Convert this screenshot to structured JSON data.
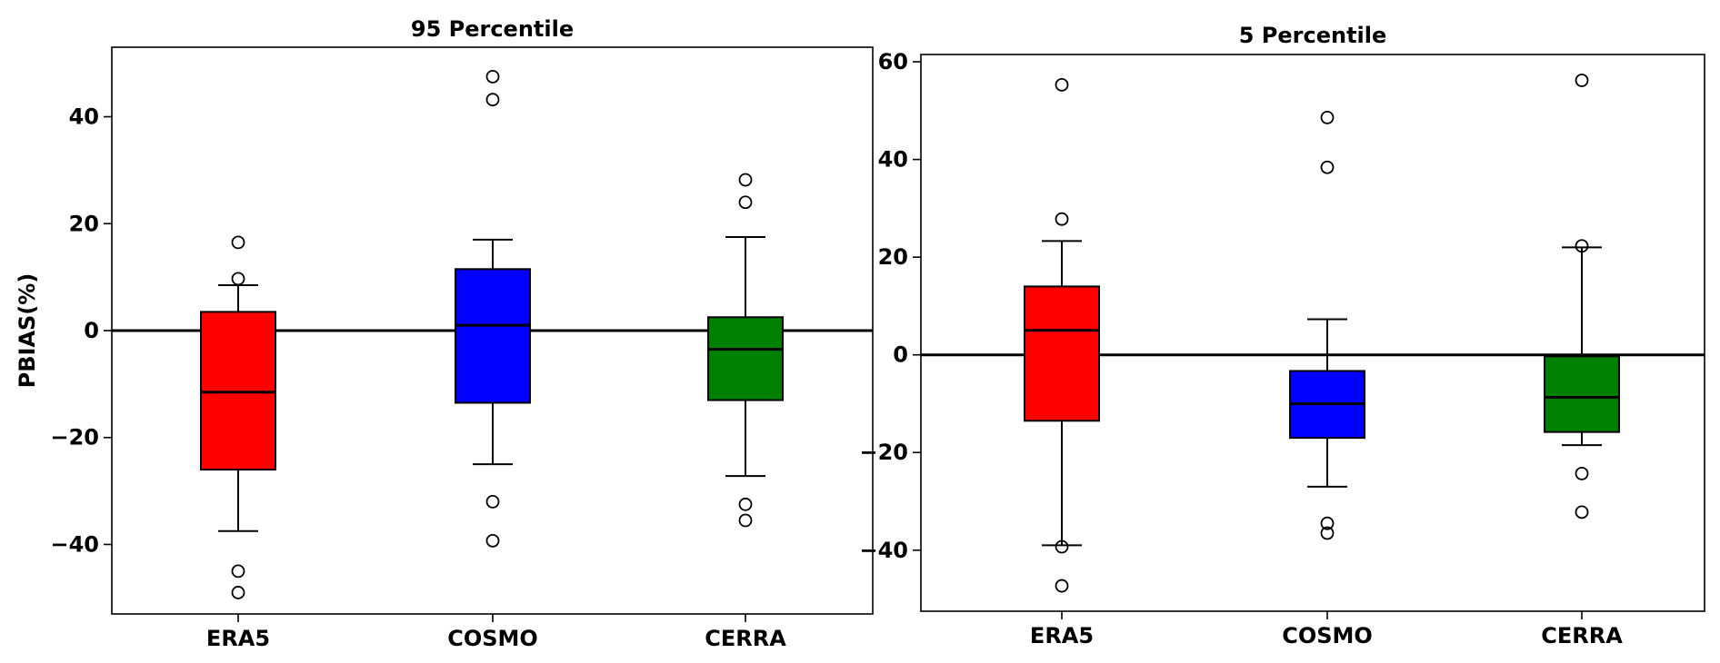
{
  "chart_data": [
    {
      "type": "boxplot",
      "title": "95 Percentile",
      "ylabel": "PBIAS(%)",
      "xlabel": "",
      "ylim": [
        -53,
        53
      ],
      "yticks": [
        -40,
        -20,
        0,
        20,
        40
      ],
      "ytick_labels": [
        "−40",
        "−20",
        "0",
        "20",
        "40"
      ],
      "reference_line": 0,
      "categories": [
        "ERA5",
        "COSMO",
        "CERRA"
      ],
      "colors": [
        "#ff0000",
        "#0000ff",
        "#008000"
      ],
      "boxes": [
        {
          "name": "ERA5",
          "whisker_low": -37.5,
          "q1": -26,
          "median": -11.5,
          "q3": 3.5,
          "whisker_high": 8.5,
          "fliers": [
            16.5,
            9.7,
            -45,
            -49
          ]
        },
        {
          "name": "COSMO",
          "whisker_low": -25,
          "q1": -13.5,
          "median": 1,
          "q3": 11.5,
          "whisker_high": 17,
          "fliers": [
            47.5,
            43.2,
            -32,
            -39.3
          ]
        },
        {
          "name": "CERRA",
          "whisker_low": -27.2,
          "q1": -13,
          "median": -3.5,
          "q3": 2.5,
          "whisker_high": 17.5,
          "fliers": [
            28.2,
            24,
            -32.5,
            -35.5
          ]
        }
      ]
    },
    {
      "type": "boxplot",
      "title": "5 Percentile",
      "ylabel": "",
      "xlabel": "",
      "ylim": [
        -52.5,
        61.5
      ],
      "yticks": [
        -40,
        -20,
        0,
        20,
        40,
        60
      ],
      "ytick_labels": [
        "−40",
        "−20",
        "0",
        "20",
        "40",
        "60"
      ],
      "reference_line": 0,
      "categories": [
        "ERA5",
        "COSMO",
        "CERRA"
      ],
      "colors": [
        "#ff0000",
        "#0000ff",
        "#008000"
      ],
      "boxes": [
        {
          "name": "ERA5",
          "whisker_low": -39,
          "q1": -13.5,
          "median": 5,
          "q3": 14,
          "whisker_high": 23.3,
          "fliers": [
            55.3,
            27.8,
            -39.3,
            -47.3
          ]
        },
        {
          "name": "COSMO",
          "whisker_low": -27,
          "q1": -17,
          "median": -10,
          "q3": -3.3,
          "whisker_high": 7.3,
          "fliers": [
            48.6,
            38.4,
            -34.5,
            -36.5
          ]
        },
        {
          "name": "CERRA",
          "whisker_low": -18.5,
          "q1": -15.8,
          "median": -8.7,
          "q3": -0.3,
          "whisker_high": 22,
          "fliers": [
            56.2,
            22.3,
            -24.3,
            -32.2
          ]
        }
      ]
    }
  ]
}
